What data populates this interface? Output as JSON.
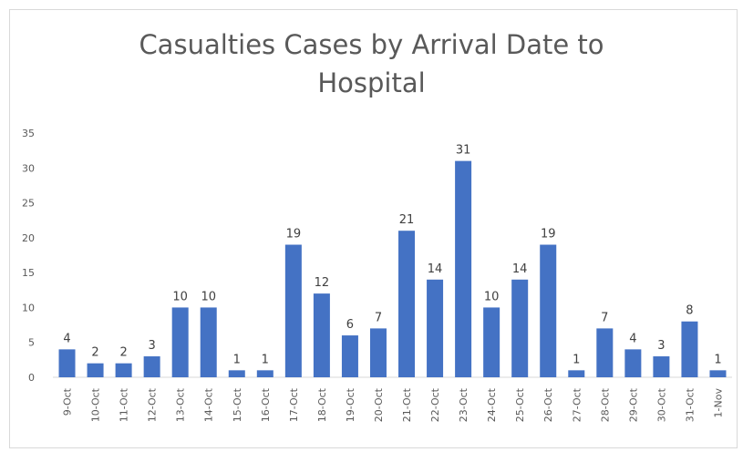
{
  "chart_data": {
    "type": "bar",
    "title_lines": [
      "Casualties Cases by Arrival Date to",
      "Hospital"
    ],
    "title": "Casualties Cases by Arrival Date to Hospital",
    "xlabel": "",
    "ylabel": "",
    "ylim": [
      0,
      35
    ],
    "yticks": [
      0,
      5,
      10,
      15,
      20,
      25,
      30,
      35
    ],
    "grid": false,
    "legend": "none",
    "bar_color": "#4472C4",
    "categories": [
      "9-Oct",
      "10-Oct",
      "11-Oct",
      "12-Oct",
      "13-Oct",
      "14-Oct",
      "15-Oct",
      "16-Oct",
      "17-Oct",
      "18-Oct",
      "19-Oct",
      "20-Oct",
      "21-Oct",
      "22-Oct",
      "23-Oct",
      "24-Oct",
      "25-Oct",
      "26-Oct",
      "27-Oct",
      "28-Oct",
      "29-Oct",
      "30-Oct",
      "31-Oct",
      "1-Nov"
    ],
    "values": [
      4,
      2,
      2,
      3,
      10,
      10,
      1,
      1,
      19,
      12,
      6,
      7,
      21,
      14,
      31,
      10,
      14,
      19,
      1,
      7,
      4,
      3,
      8,
      1
    ]
  }
}
